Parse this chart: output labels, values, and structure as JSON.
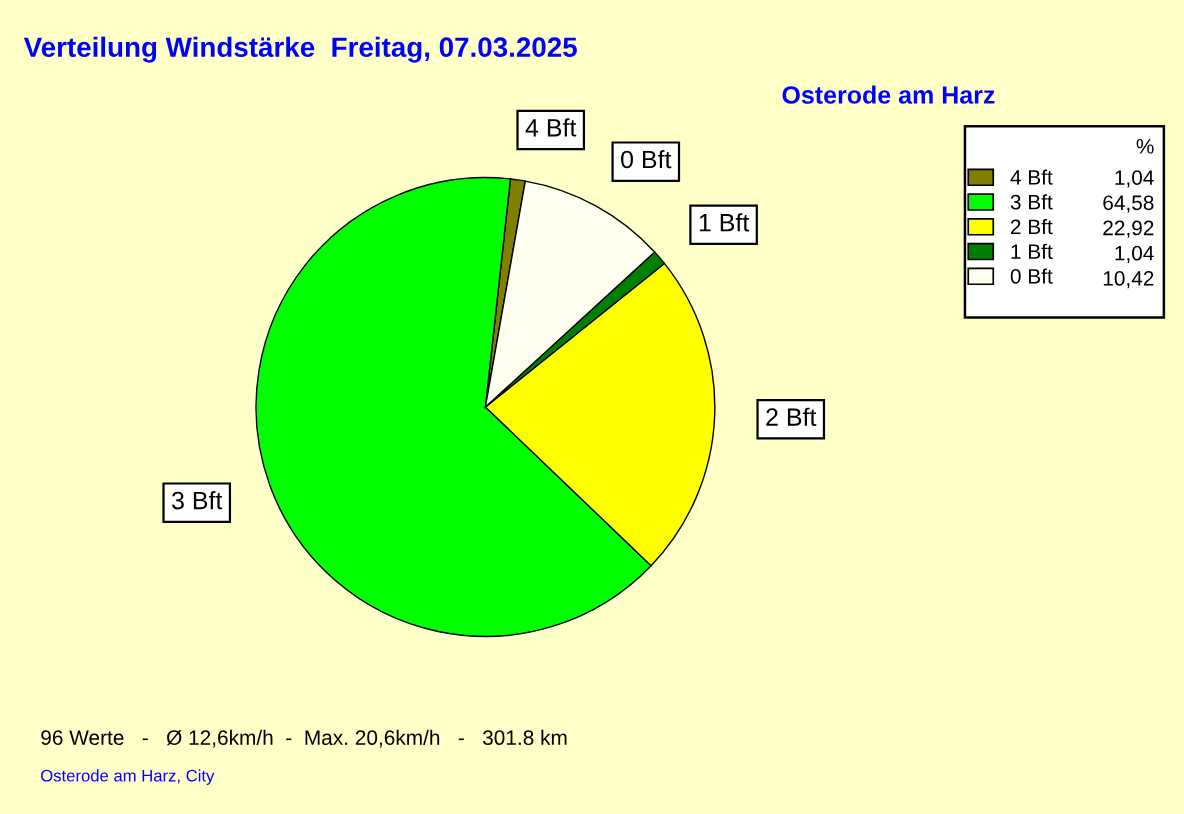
{
  "chart_data": {
    "type": "pie",
    "title": "Verteilung Windstärke  Freitag, 07.03.2025",
    "subtitle": "Osterode am Harz",
    "legend_title": "%",
    "categories": [
      "4 Bft",
      "3 Bft",
      "2 Bft",
      "1 Bft",
      "0 Bft"
    ],
    "values": [
      1.04,
      64.58,
      22.92,
      1.04,
      10.42
    ],
    "value_labels": [
      "1,04",
      "64,58",
      "22,92",
      "1,04",
      "10,42"
    ],
    "colors": [
      "#808000",
      "#00ff00",
      "#ffff00",
      "#008000",
      "#fffff0"
    ],
    "legend": "top right",
    "annotations": [
      "96 Werte   -   Ø 12,6km/h  -  Max. 20,6km/h   -   301.8 km",
      "Osterode am Harz, City"
    ]
  }
}
